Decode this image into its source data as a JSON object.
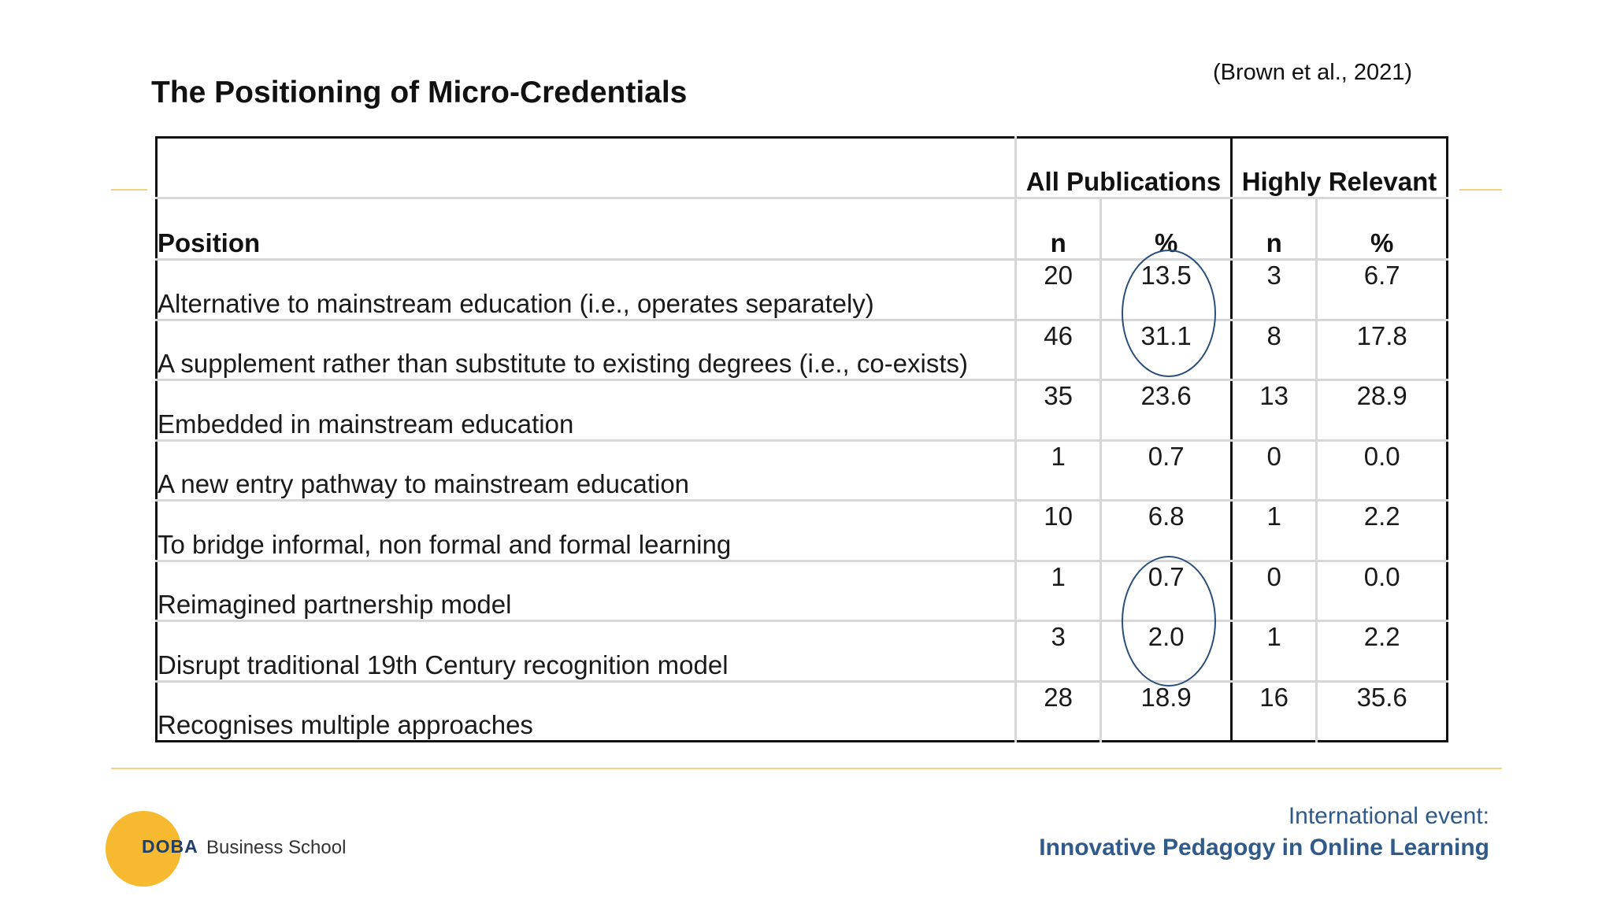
{
  "slide": {
    "citation": "(Brown et al., 2021)",
    "title": "The Positioning of Micro-Credentials"
  },
  "table": {
    "group_headers": {
      "all": "All Publications",
      "highly": "Highly Relevant"
    },
    "position_header": "Position",
    "sub_headers": {
      "n1": "n",
      "p1": "%",
      "n2": "n",
      "p2": "%"
    },
    "rows": [
      {
        "label": "Alternative to mainstream education (i.e., operates separately)",
        "n1": "20",
        "p1": "13.5",
        "n2": "3",
        "p2": "6.7"
      },
      {
        "label": "A supplement rather than substitute to existing degrees (i.e., co-exists)",
        "n1": "46",
        "p1": "31.1",
        "n2": "8",
        "p2": "17.8"
      },
      {
        "label": "Embedded in mainstream education",
        "n1": "35",
        "p1": "23.6",
        "n2": "13",
        "p2": "28.9"
      },
      {
        "label": "A new entry pathway to mainstream education",
        "n1": "1",
        "p1": "0.7",
        "n2": "0",
        "p2": "0.0"
      },
      {
        "label": "To bridge informal, non formal and formal learning",
        "n1": "10",
        "p1": "6.8",
        "n2": "1",
        "p2": "2.2"
      },
      {
        "label": "Reimagined partnership model",
        "n1": "1",
        "p1": "0.7",
        "n2": "0",
        "p2": "0.0"
      },
      {
        "label": "Disrupt traditional 19th Century recognition model",
        "n1": "3",
        "p1": "2.0",
        "n2": "1",
        "p2": "2.2"
      },
      {
        "label": "Recognises multiple approaches",
        "n1": "28",
        "p1": "18.9",
        "n2": "16",
        "p2": "35.6"
      }
    ]
  },
  "footer": {
    "logo_mark": "DOBA",
    "logo_sub": "Business School",
    "event_line1": "International event:",
    "event_line2": "Innovative Pedagogy in Online Learning"
  },
  "colors": {
    "accent_gold": "#f6b92f",
    "accent_line": "#f2d27a",
    "brand_blue": "#2f5a8a",
    "annotation_blue": "#2a4f7a"
  }
}
